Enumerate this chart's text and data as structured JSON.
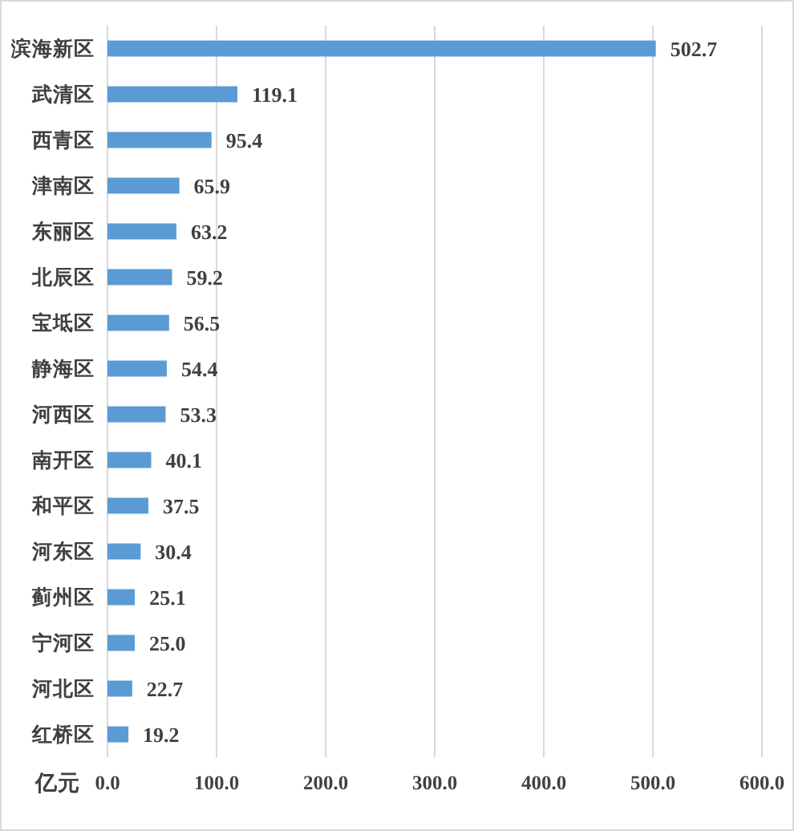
{
  "chart_data": {
    "type": "bar",
    "orientation": "horizontal",
    "xlabel": "亿元",
    "categories": [
      "滨海新区",
      "武清区",
      "西青区",
      "津南区",
      "东丽区",
      "北辰区",
      "宝坻区",
      "静海区",
      "河西区",
      "南开区",
      "和平区",
      "河东区",
      "蓟州区",
      "宁河区",
      "河北区",
      "红桥区"
    ],
    "values": [
      502.7,
      119.1,
      95.4,
      65.9,
      63.2,
      59.2,
      56.5,
      54.4,
      53.3,
      40.1,
      37.5,
      30.4,
      25.1,
      25.0,
      22.7,
      19.2
    ],
    "value_labels": [
      "502.7",
      "119.1",
      "95.4",
      "65.9",
      "63.2",
      "59.2",
      "56.5",
      "54.4",
      "53.3",
      "40.1",
      "37.5",
      "30.4",
      "25.1",
      "25.0",
      "22.7",
      "19.2"
    ],
    "color": "#5b9bd5",
    "xlim": [
      0,
      600
    ],
    "xticks": [
      {
        "value": 0,
        "label": "0.0"
      },
      {
        "value": 100,
        "label": "100.0"
      },
      {
        "value": 200,
        "label": "200.0"
      },
      {
        "value": 300,
        "label": "300.0"
      },
      {
        "value": 400,
        "label": "400.0"
      },
      {
        "value": 500,
        "label": "500.0"
      },
      {
        "value": 600,
        "label": "600.0"
      }
    ],
    "grid": "x"
  }
}
